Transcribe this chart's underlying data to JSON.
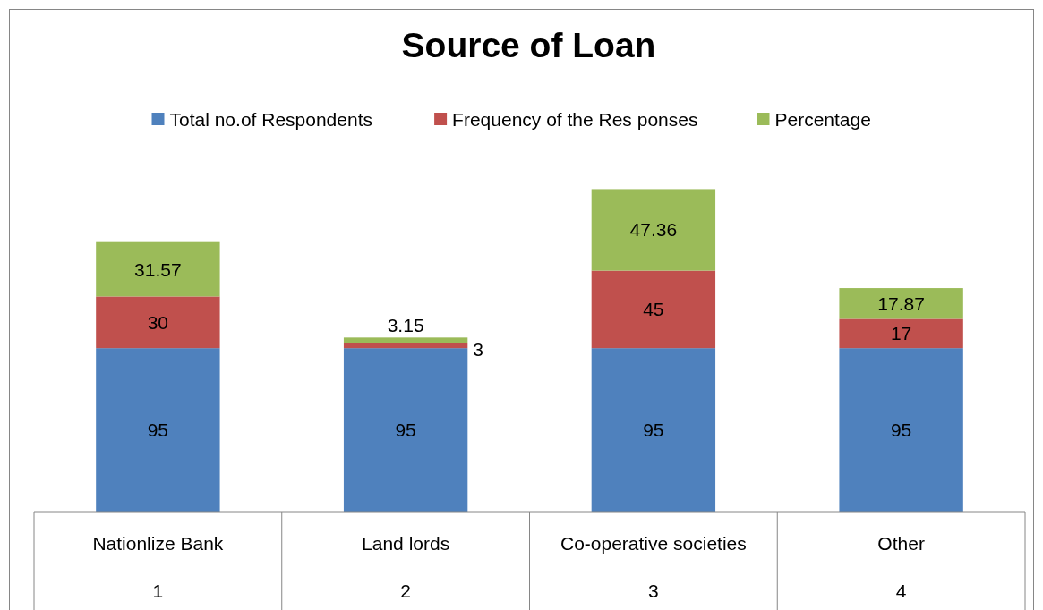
{
  "chart_data": {
    "type": "bar",
    "title": "Source of Loan",
    "stacked": true,
    "data_labels": true,
    "legend": "top",
    "categories": [
      "Nationlize Bank",
      "Land lords",
      "Co-operative societies",
      "Other"
    ],
    "series": [
      {
        "name": "Total no.of Respondents",
        "color": "#4f81bd",
        "values": [
          95,
          95,
          95,
          95
        ]
      },
      {
        "name": "Frequency of the Res ponses",
        "color": "#c0504d",
        "values": [
          30,
          3,
          45,
          17
        ]
      },
      {
        "name": "Percentage",
        "color": "#9bbb59",
        "values": [
          31.57,
          3.15,
          47.36,
          17.87
        ]
      }
    ],
    "annotations": [
      "1",
      "2",
      "3",
      "4"
    ]
  }
}
